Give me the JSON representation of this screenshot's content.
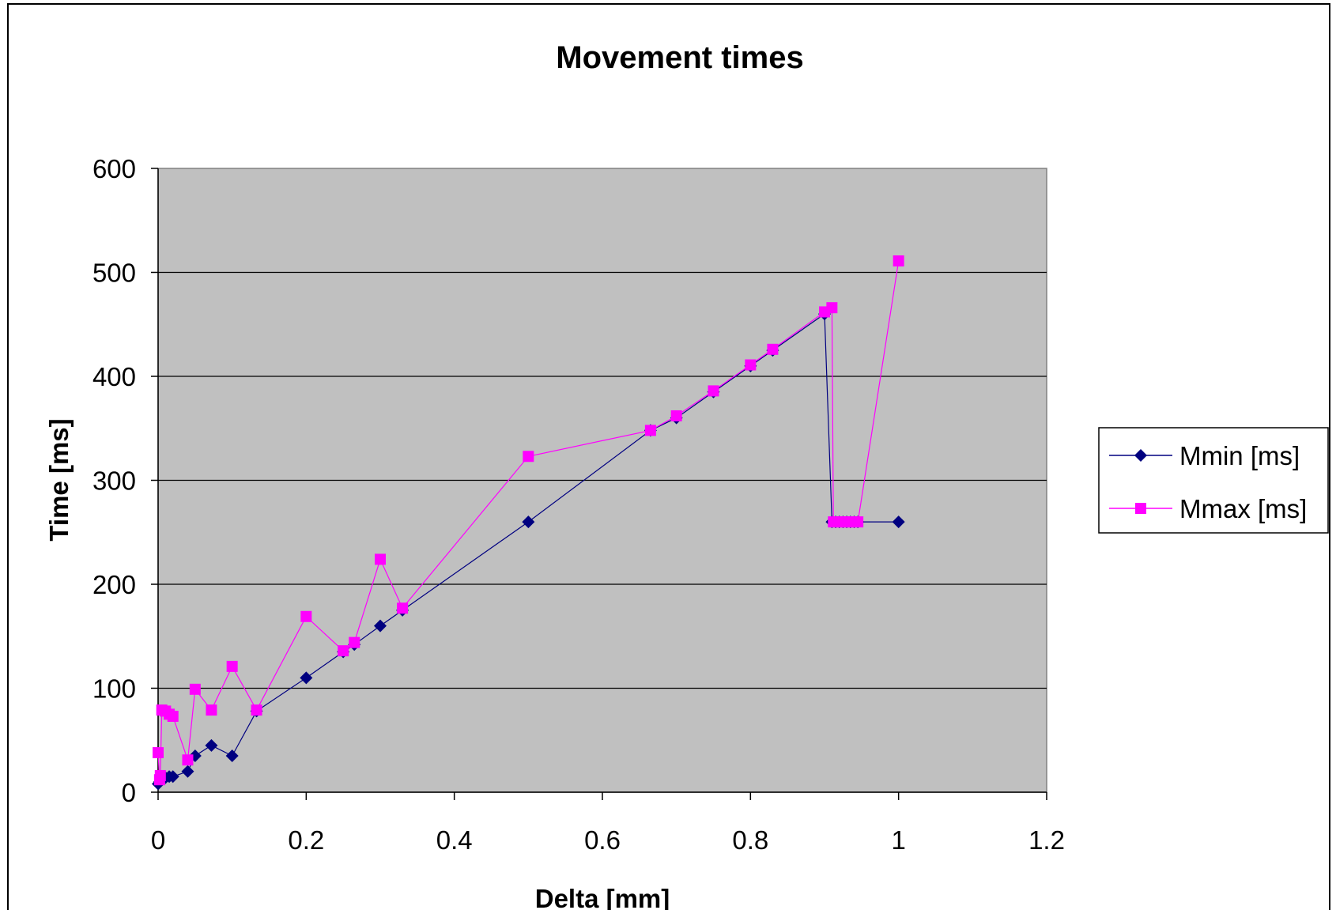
{
  "chart_data": {
    "type": "line",
    "title": "Movement times",
    "xlabel": "Delta [mm]",
    "ylabel": "Time [ms]",
    "xlim": [
      0,
      1.2
    ],
    "ylim": [
      0,
      600
    ],
    "xticks": [
      0,
      0.2,
      0.4,
      0.6,
      0.8,
      1,
      1.2
    ],
    "xtick_labels": [
      "0",
      "0.2",
      "0.4",
      "0.6",
      "0.8",
      "1",
      "1.2"
    ],
    "yticks": [
      0,
      100,
      200,
      300,
      400,
      500,
      600
    ],
    "ytick_labels": [
      "0",
      "100",
      "200",
      "300",
      "400",
      "500",
      "600"
    ],
    "grid": "horizontal",
    "plot_background": "#c0c0c0",
    "legend_position": "right",
    "series": [
      {
        "name": "Mmin [ms]",
        "color": "#000080",
        "marker": "diamond",
        "points": [
          [
            0,
            8
          ],
          [
            0.002,
            10
          ],
          [
            0.005,
            12
          ],
          [
            0.01,
            14
          ],
          [
            0.015,
            15
          ],
          [
            0.02,
            15
          ],
          [
            0.04,
            20
          ],
          [
            0.05,
            35
          ],
          [
            0.072,
            45
          ],
          [
            0.1,
            35
          ],
          [
            0.133,
            78
          ],
          [
            0.2,
            110
          ],
          [
            0.25,
            135
          ],
          [
            0.265,
            142
          ],
          [
            0.3,
            160
          ],
          [
            0.33,
            175
          ],
          [
            0.5,
            260
          ],
          [
            0.665,
            348
          ],
          [
            0.7,
            360
          ],
          [
            0.75,
            385
          ],
          [
            0.8,
            410
          ],
          [
            0.83,
            425
          ],
          [
            0.9,
            460
          ],
          [
            0.91,
            260
          ],
          [
            0.915,
            260
          ],
          [
            0.92,
            260
          ],
          [
            0.925,
            260
          ],
          [
            0.93,
            260
          ],
          [
            0.935,
            260
          ],
          [
            0.94,
            260
          ],
          [
            0.945,
            260
          ],
          [
            1,
            260
          ]
        ]
      },
      {
        "name": "Mmax [ms]",
        "color": "#ff00ff",
        "marker": "square",
        "points": [
          [
            0,
            38
          ],
          [
            0.002,
            12
          ],
          [
            0.003,
            16
          ],
          [
            0.005,
            79
          ],
          [
            0.01,
            78
          ],
          [
            0.015,
            75
          ],
          [
            0.02,
            73
          ],
          [
            0.04,
            31
          ],
          [
            0.05,
            99
          ],
          [
            0.072,
            79
          ],
          [
            0.1,
            121
          ],
          [
            0.133,
            79
          ],
          [
            0.2,
            169
          ],
          [
            0.25,
            136
          ],
          [
            0.265,
            144
          ],
          [
            0.3,
            224
          ],
          [
            0.33,
            177
          ],
          [
            0.5,
            323
          ],
          [
            0.665,
            348
          ],
          [
            0.7,
            362
          ],
          [
            0.75,
            386
          ],
          [
            0.8,
            411
          ],
          [
            0.83,
            426
          ],
          [
            0.9,
            462
          ],
          [
            0.91,
            466
          ],
          [
            0.912,
            260
          ],
          [
            0.92,
            260
          ],
          [
            0.925,
            260
          ],
          [
            0.93,
            260
          ],
          [
            0.935,
            260
          ],
          [
            0.94,
            260
          ],
          [
            0.945,
            260
          ],
          [
            1,
            511
          ]
        ]
      }
    ]
  }
}
